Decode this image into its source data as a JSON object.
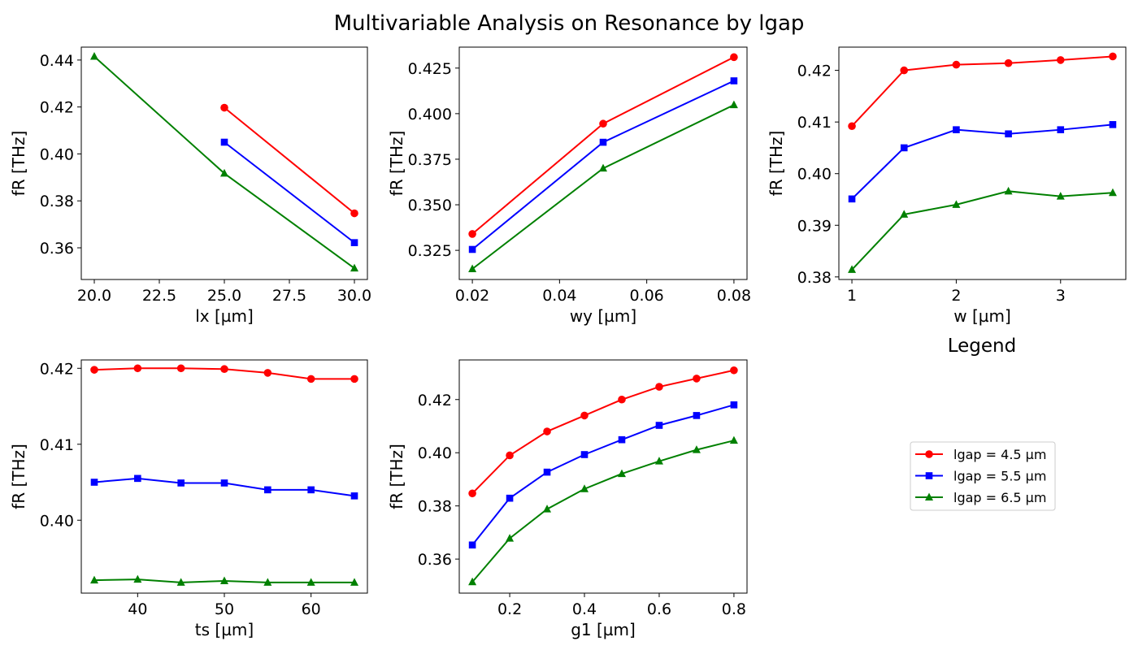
{
  "title": "Multivariable Analysis on Resonance by lgap",
  "legend": {
    "title": "Legend",
    "entries": [
      {
        "label": "lgap = 4.5 µm",
        "color": "#ff0000",
        "marker": "circle"
      },
      {
        "label": "lgap = 5.5 µm",
        "color": "#0000ff",
        "marker": "square"
      },
      {
        "label": "lgap = 6.5 µm",
        "color": "#008000",
        "marker": "triangle"
      }
    ]
  },
  "chart_data": [
    {
      "type": "line",
      "xlabel": "lx [µm]",
      "ylabel": "fR [THz]",
      "xlim": [
        19.5,
        30.5
      ],
      "ylim": [
        0.3465,
        0.4455
      ],
      "xticks": [
        20.0,
        22.5,
        25.0,
        27.5,
        30.0
      ],
      "xtick_labels": [
        "20.0",
        "22.5",
        "25.0",
        "27.5",
        "30.0"
      ],
      "yticks": [
        0.36,
        0.38,
        0.4,
        0.42,
        0.44
      ],
      "ytick_labels": [
        "0.36",
        "0.38",
        "0.40",
        "0.42",
        "0.44"
      ],
      "series": [
        {
          "name": "lgap = 4.5 µm",
          "x": [
            25,
            30
          ],
          "y": [
            0.4197,
            0.3747
          ]
        },
        {
          "name": "lgap = 5.5 µm",
          "x": [
            25,
            30
          ],
          "y": [
            0.405,
            0.3622
          ]
        },
        {
          "name": "lgap = 6.5 µm",
          "x": [
            20,
            25,
            30
          ],
          "y": [
            0.4415,
            0.3917,
            0.3513
          ]
        }
      ]
    },
    {
      "type": "line",
      "xlabel": "wy [µm]",
      "ylabel": "fR [THz]",
      "xlim": [
        0.017,
        0.083
      ],
      "ylim": [
        0.309,
        0.4365
      ],
      "xticks": [
        0.02,
        0.04,
        0.06,
        0.08
      ],
      "xtick_labels": [
        "0.02",
        "0.04",
        "0.06",
        "0.08"
      ],
      "yticks": [
        0.325,
        0.35,
        0.375,
        0.4,
        0.425
      ],
      "ytick_labels": [
        "0.325",
        "0.350",
        "0.375",
        "0.400",
        "0.425"
      ],
      "series": [
        {
          "name": "lgap = 4.5 µm",
          "x": [
            0.02,
            0.05,
            0.08
          ],
          "y": [
            0.334,
            0.3945,
            0.431
          ]
        },
        {
          "name": "lgap = 5.5 µm",
          "x": [
            0.02,
            0.05,
            0.08
          ],
          "y": [
            0.3255,
            0.3843,
            0.418
          ]
        },
        {
          "name": "lgap = 6.5 µm",
          "x": [
            0.02,
            0.05,
            0.08
          ],
          "y": [
            0.3148,
            0.37,
            0.4048
          ]
        }
      ]
    },
    {
      "type": "line",
      "xlabel": "w [µm]",
      "ylabel": "fR [THz]",
      "xlim": [
        0.875,
        3.625
      ],
      "ylim": [
        0.3795,
        0.4245
      ],
      "xticks": [
        1,
        2,
        3
      ],
      "xtick_labels": [
        "1",
        "2",
        "3"
      ],
      "yticks": [
        0.38,
        0.39,
        0.4,
        0.41,
        0.42
      ],
      "ytick_labels": [
        "0.38",
        "0.39",
        "0.40",
        "0.41",
        "0.42"
      ],
      "series": [
        {
          "name": "lgap = 4.5 µm",
          "x": [
            1,
            1.5,
            2,
            2.5,
            3,
            3.5
          ],
          "y": [
            0.4092,
            0.42,
            0.4211,
            0.4214,
            0.422,
            0.4227
          ]
        },
        {
          "name": "lgap = 5.5 µm",
          "x": [
            1,
            1.5,
            2,
            2.5,
            3,
            3.5
          ],
          "y": [
            0.3951,
            0.405,
            0.4085,
            0.4077,
            0.4085,
            0.4095
          ]
        },
        {
          "name": "lgap = 6.5 µm",
          "x": [
            1,
            1.5,
            2,
            2.5,
            3,
            3.5
          ],
          "y": [
            0.3814,
            0.3921,
            0.394,
            0.3966,
            0.3956,
            0.3963
          ]
        }
      ]
    },
    {
      "type": "line",
      "xlabel": "ts [µm]",
      "ylabel": "fR [THz]",
      "xlim": [
        33.5,
        66.5
      ],
      "ylim": [
        0.3904,
        0.4211
      ],
      "xticks": [
        40,
        50,
        60
      ],
      "xtick_labels": [
        "40",
        "50",
        "60"
      ],
      "yticks": [
        0.4,
        0.41,
        0.42
      ],
      "ytick_labels": [
        "0.40",
        "0.41",
        "0.42"
      ],
      "series": [
        {
          "name": "lgap = 4.5 µm",
          "x": [
            35,
            40,
            45,
            50,
            55,
            60,
            65
          ],
          "y": [
            0.4198,
            0.42,
            0.42,
            0.4199,
            0.4194,
            0.4186,
            0.4186
          ]
        },
        {
          "name": "lgap = 5.5 µm",
          "x": [
            35,
            40,
            45,
            50,
            55,
            60,
            65
          ],
          "y": [
            0.405,
            0.4055,
            0.4049,
            0.4049,
            0.404,
            0.404,
            0.4032
          ]
        },
        {
          "name": "lgap = 6.5 µm",
          "x": [
            35,
            40,
            45,
            50,
            55,
            60,
            65
          ],
          "y": [
            0.3921,
            0.3922,
            0.3918,
            0.392,
            0.3918,
            0.3918,
            0.3918
          ]
        }
      ]
    },
    {
      "type": "line",
      "xlabel": "g1 [µm]",
      "ylabel": "fR [THz]",
      "xlim": [
        0.065,
        0.835
      ],
      "ylim": [
        0.3472,
        0.4349
      ],
      "xticks": [
        0.2,
        0.4,
        0.6,
        0.8
      ],
      "xtick_labels": [
        "0.2",
        "0.4",
        "0.6",
        "0.8"
      ],
      "yticks": [
        0.36,
        0.38,
        0.4,
        0.42
      ],
      "ytick_labels": [
        "0.36",
        "0.38",
        "0.40",
        "0.42"
      ],
      "series": [
        {
          "name": "lgap = 4.5 µm",
          "x": [
            0.1,
            0.2,
            0.3,
            0.4,
            0.5,
            0.6,
            0.7,
            0.8
          ],
          "y": [
            0.3847,
            0.399,
            0.408,
            0.414,
            0.42,
            0.4248,
            0.4279,
            0.431
          ]
        },
        {
          "name": "lgap = 5.5 µm",
          "x": [
            0.1,
            0.2,
            0.3,
            0.4,
            0.5,
            0.6,
            0.7,
            0.8
          ],
          "y": [
            0.3653,
            0.3829,
            0.3927,
            0.3993,
            0.4049,
            0.4103,
            0.414,
            0.418
          ]
        },
        {
          "name": "lgap = 6.5 µm",
          "x": [
            0.1,
            0.2,
            0.3,
            0.4,
            0.5,
            0.6,
            0.7,
            0.8
          ],
          "y": [
            0.3514,
            0.3678,
            0.3788,
            0.3864,
            0.3921,
            0.3968,
            0.4011,
            0.4046
          ]
        }
      ]
    }
  ]
}
